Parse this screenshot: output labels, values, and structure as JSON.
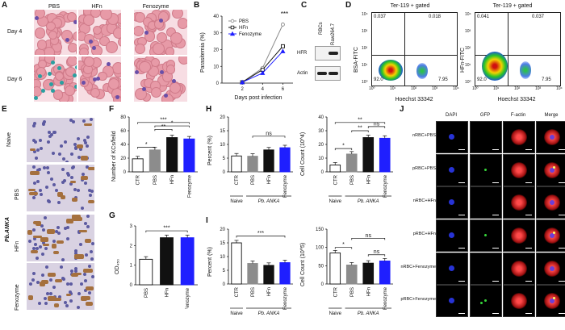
{
  "panels": {
    "A": {
      "letter": "A",
      "cols": [
        "PBS",
        "HFn",
        "Fenozyme"
      ],
      "rows": [
        "Day 4",
        "Day 6"
      ]
    },
    "B": {
      "letter": "B",
      "ylabel": "Parasitemia (%)",
      "xlabel": "Days post infection",
      "yticks": [
        "0",
        "10",
        "20",
        "30",
        "40"
      ],
      "xticks": [
        "2",
        "4",
        "6"
      ],
      "sig": "***",
      "legend": [
        "PBS",
        "HFn",
        "Fenozyme"
      ]
    },
    "C": {
      "letter": "C",
      "cols": [
        "RBCs",
        "Raw264.7"
      ],
      "rows": [
        "HFR",
        "Actin"
      ]
    },
    "D": {
      "letter": "D",
      "title": "Ter-119 + gated",
      "left": {
        "ylabel": "BSA-FITC",
        "q_ul": "0.037",
        "q_ur": "0.018",
        "q_ll": "92.0",
        "q_lr": "7.95"
      },
      "right": {
        "ylabel": "HFn-FITC",
        "q_ul": "0.041",
        "q_ur": "0.037",
        "q_ll": "92.0",
        "q_lr": "7.95"
      },
      "xlabel": "Hoechst 33342",
      "xticks": [
        "10⁰",
        "10¹",
        "10²",
        "10³",
        "10⁴"
      ],
      "yticks": [
        "10⁰",
        "10¹",
        "10²",
        "10³",
        "10⁴"
      ]
    },
    "E": {
      "letter": "E",
      "rows": [
        "Naive",
        "PBS",
        "HFn",
        "Fenozyme"
      ],
      "group": "Pb.ANKA"
    },
    "F": {
      "letter": "F",
      "ylabel": "Number of KCs/feild",
      "yticks": [
        "0",
        "20",
        "40",
        "60",
        "80"
      ],
      "sig": [
        "*",
        "***",
        "**",
        "*"
      ]
    },
    "G": {
      "letter": "G",
      "ylabel": "OD₄₅₀",
      "yticks": [
        "0",
        "1",
        "2",
        "3"
      ],
      "sig": "***"
    },
    "H": {
      "letter": "H",
      "ylabel_left": "Percent (%)",
      "ylabel_right": "Cell Count (10^4)",
      "yticks_left": [
        "0",
        "5",
        "10",
        "15",
        "20"
      ],
      "yticks_right": [
        "0",
        "10",
        "20",
        "30",
        "40"
      ],
      "sig_left": "ns",
      "sig_right": [
        "*",
        "**",
        "**",
        "ns"
      ]
    },
    "I": {
      "letter": "I",
      "ylabel_left": "Percent (%)",
      "ylabel_right": "Cell Count (10^5)",
      "yticks_left": [
        "0",
        "5",
        "10",
        "15",
        "20"
      ],
      "yticks_right": [
        "0",
        "50",
        "100",
        "150"
      ],
      "sig_left": "***",
      "sig_right": [
        "*",
        "ns",
        "ns"
      ]
    },
    "J": {
      "letter": "J",
      "cols": [
        "DAPI",
        "GFP",
        "F-actin",
        "Merge"
      ],
      "rows": [
        "nRBC+PBS",
        "pRBC+PBS",
        "nRBC+HFn",
        "pRBC+HFn",
        "nRBC+Fenozyme",
        "pRBC+Fenozyme"
      ]
    }
  },
  "bar_xlabels": {
    "ctr": "CTR",
    "pbs": "PBS",
    "hfn": "HFn",
    "feno": "Fenozyme",
    "naive": "Naive",
    "anka": "Pb. ANKA"
  },
  "colors": {
    "pbs": "#8c8c8c",
    "hfn": "#111111",
    "feno": "#1f1fff",
    "ctr": "#ffffff"
  },
  "chart_data": [
    {
      "type": "line",
      "panel": "B",
      "x": [
        2,
        4,
        6
      ],
      "series": [
        {
          "name": "PBS",
          "values": [
            0.5,
            9,
            35
          ]
        },
        {
          "name": "HFn",
          "values": [
            0.5,
            8,
            22
          ]
        },
        {
          "name": "Fenozyme",
          "values": [
            0.5,
            6,
            19
          ]
        }
      ],
      "xlabel": "Days post infection",
      "ylabel": "Parasitemia (%)",
      "ylim": [
        0,
        40
      ]
    },
    {
      "type": "bar",
      "panel": "F",
      "categories": [
        "CTR",
        "PBS",
        "HFn",
        "Fenozyme"
      ],
      "values": [
        19,
        32,
        50,
        48
      ],
      "ylabel": "Number of KCs/feild",
      "ylim": [
        0,
        80
      ]
    },
    {
      "type": "bar",
      "panel": "G",
      "categories": [
        "PBS",
        "HFn",
        "Fenozyme"
      ],
      "values": [
        1.3,
        2.4,
        2.4
      ],
      "ylabel": "OD₄₅₀",
      "ylim": [
        0,
        3
      ]
    },
    {
      "type": "bar",
      "panel": "H-left",
      "categories": [
        "CTR",
        "PBS",
        "HFn",
        "Fenozyme"
      ],
      "values": [
        5.8,
        5.7,
        8.0,
        8.8
      ],
      "ylabel": "Percent (%)",
      "ylim": [
        0,
        20
      ]
    },
    {
      "type": "bar",
      "panel": "H-right",
      "categories": [
        "CTR",
        "PBS",
        "HFn",
        "Fenozyme"
      ],
      "values": [
        5,
        13,
        25,
        24.5
      ],
      "ylabel": "Cell Count (10^4)",
      "ylim": [
        0,
        40
      ]
    },
    {
      "type": "bar",
      "panel": "I-left",
      "categories": [
        "CTR",
        "PBS",
        "HFn",
        "Fenozyme"
      ],
      "values": [
        15,
        7.5,
        6.8,
        7.8
      ],
      "ylabel": "Percent (%)",
      "ylim": [
        0,
        20
      ]
    },
    {
      "type": "bar",
      "panel": "I-right",
      "categories": [
        "CTR",
        "PBS",
        "HFn",
        "Fenozyme"
      ],
      "values": [
        85,
        52,
        57,
        63
      ],
      "ylabel": "Cell Count (10^5)",
      "ylim": [
        0,
        150
      ]
    }
  ]
}
